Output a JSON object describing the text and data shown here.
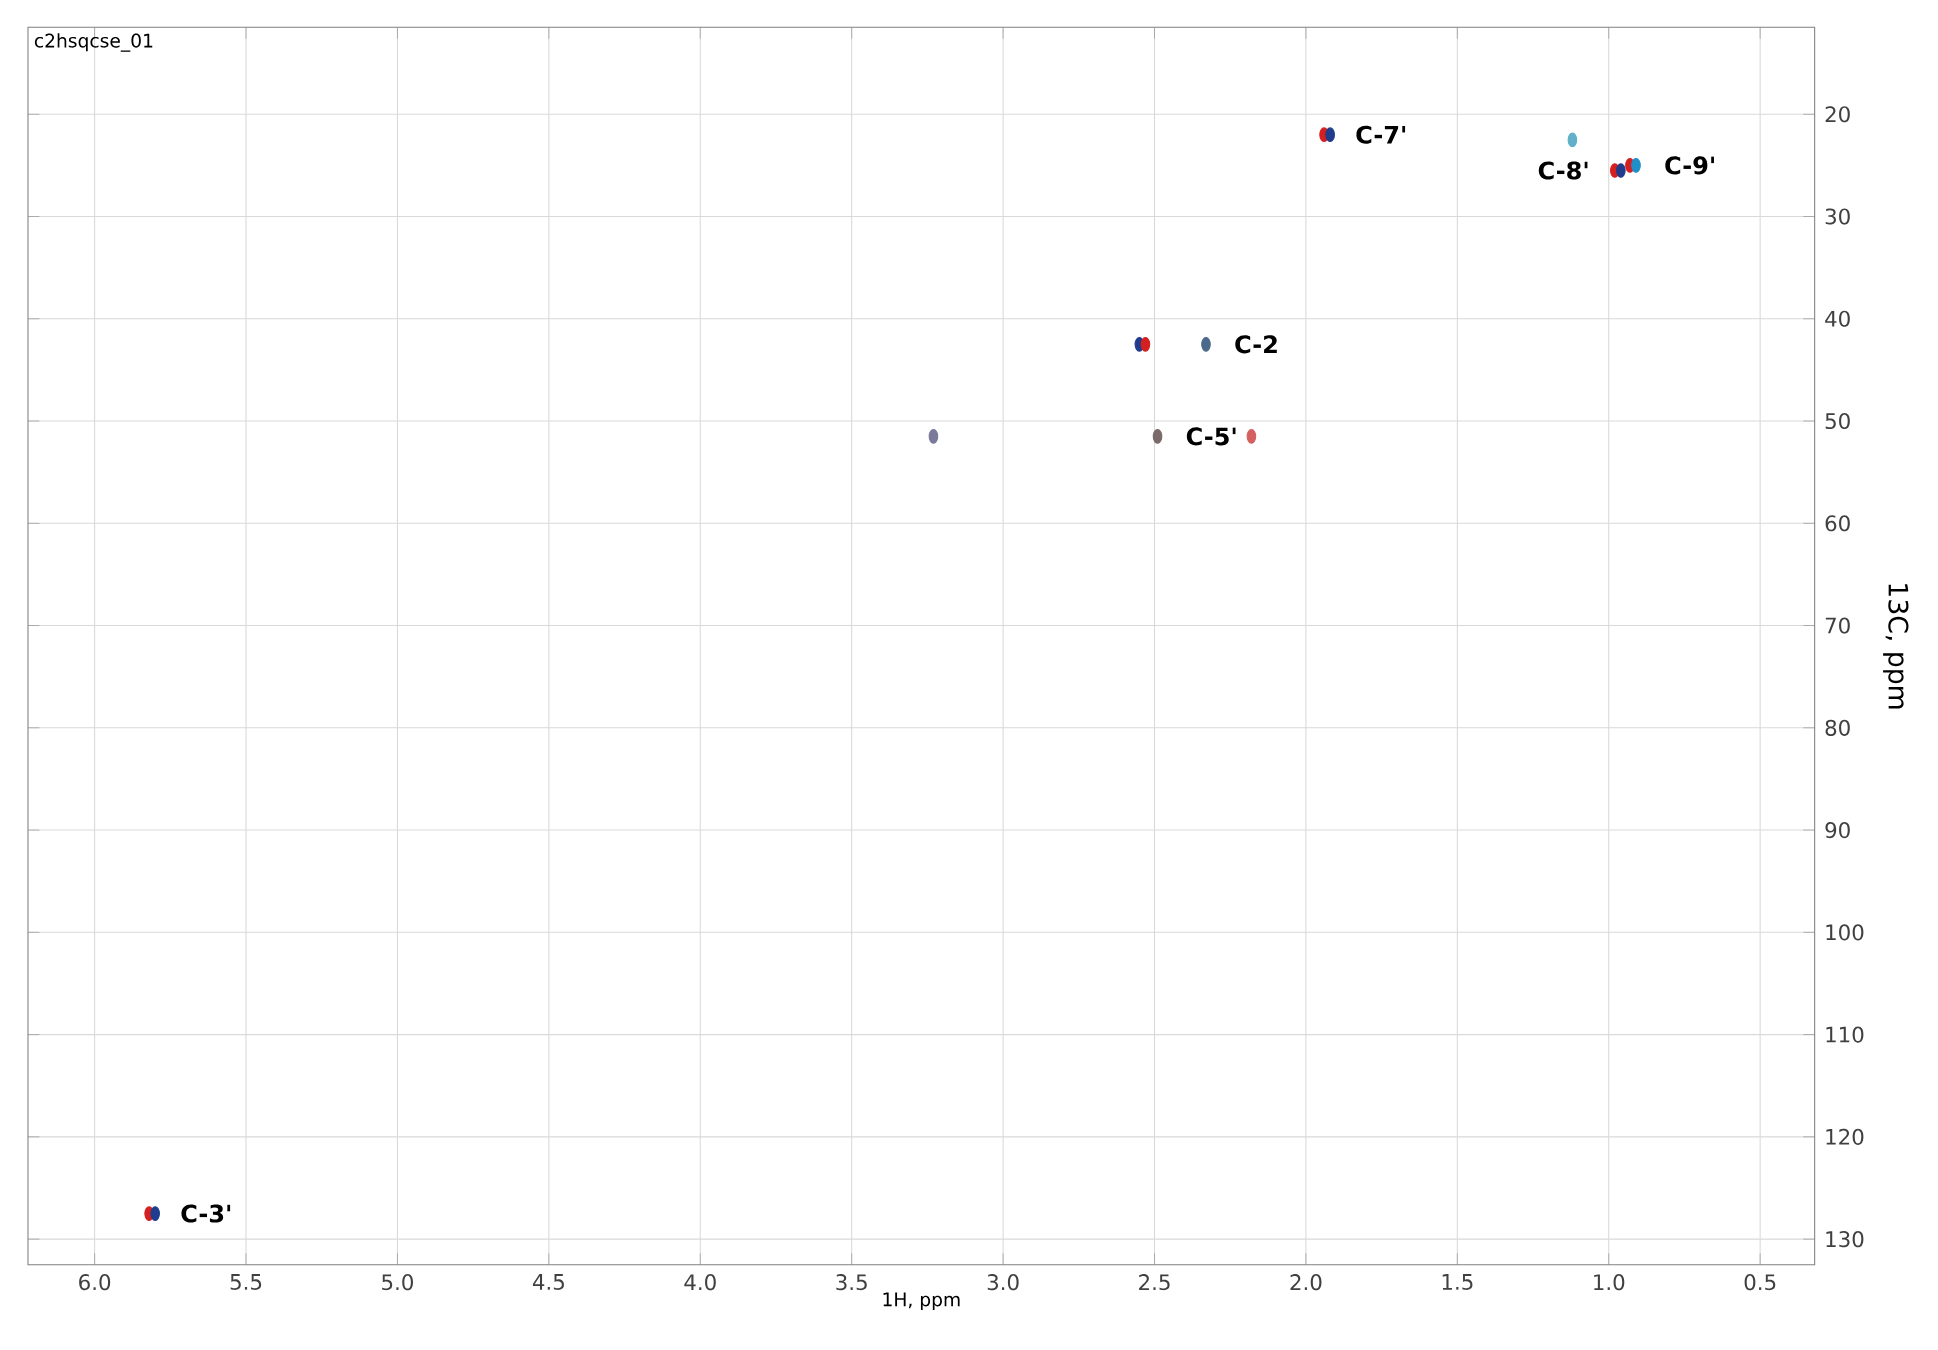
{
  "chart_data": {
    "type": "scatter",
    "title": "c2hsqcse_01",
    "xlabel": "1H, ppm",
    "ylabel": "13C, ppm",
    "x": [
      1.94,
      1.92,
      0.98,
      0.96,
      0.93,
      0.91,
      1.12,
      2.55,
      2.53,
      2.33,
      3.23,
      2.49,
      2.18,
      5.82,
      5.8
    ],
    "values": [
      22,
      22,
      25.5,
      25.5,
      25,
      25,
      22.5,
      42.5,
      42.5,
      42.5,
      51.5,
      51.5,
      51.5,
      127.5,
      127.5
    ],
    "colors": [
      "#d42020",
      "#1f3d8c",
      "#d42020",
      "#1f3d8c",
      "#d42020",
      "#1f8fc8",
      "#5fb0c8",
      "#1f3d8c",
      "#d42020",
      "#4a6a8c",
      "#7a7a9a",
      "#7a6a6a",
      "#d46060",
      "#d42020",
      "#1f3d8c"
    ],
    "marker": "circle",
    "xlim": [
      6.22,
      0.32
    ],
    "ylim": [
      132.5,
      11.5
    ],
    "xticks": [
      {
        "value": 6,
        "label": "6.0"
      },
      {
        "value": 5.5,
        "label": "5.5"
      },
      {
        "value": 5,
        "label": "5.0"
      },
      {
        "value": 4.5,
        "label": "4.5"
      },
      {
        "value": 4,
        "label": "4.0"
      },
      {
        "value": 3.5,
        "label": "3.5"
      },
      {
        "value": 3,
        "label": "3.0"
      },
      {
        "value": 2.5,
        "label": "2.5"
      },
      {
        "value": 2,
        "label": "2.0"
      },
      {
        "value": 1.5,
        "label": "1.5"
      },
      {
        "value": 1,
        "label": "1.0"
      },
      {
        "value": 0.5,
        "label": "0.5"
      }
    ],
    "yticks": [
      20,
      30,
      40,
      50,
      60,
      70,
      80,
      90,
      100,
      110,
      120,
      130
    ],
    "grid": true,
    "annotations": [
      {
        "text": "C-7'",
        "x": 1.93,
        "y": 22
      },
      {
        "text": "C-8'",
        "x": 0.97,
        "y": 25.5
      },
      {
        "text": "C-9'",
        "x": 0.91,
        "y": 25
      },
      {
        "text": "C-2",
        "x": 2.33,
        "y": 42.5
      },
      {
        "text": "C-5'",
        "x": 2.49,
        "y": 51.5
      },
      {
        "text": "C-3'",
        "x": 5.81,
        "y": 127.5
      }
    ]
  }
}
